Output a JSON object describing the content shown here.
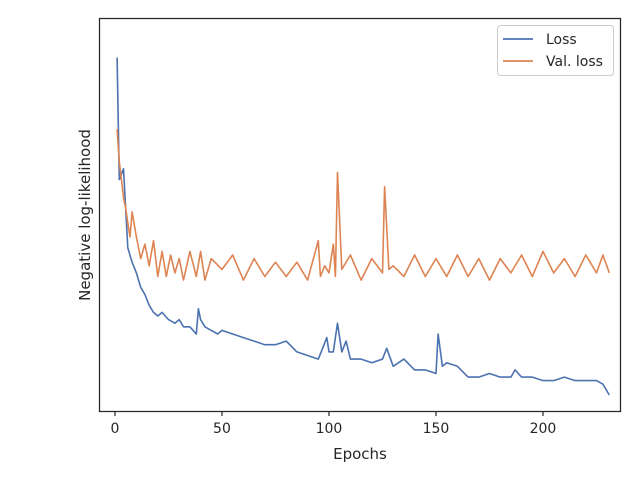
{
  "chart_data": {
    "type": "line",
    "xlabel": "Epochs",
    "ylabel": "Negative log-likelihood",
    "xlim": [
      -7,
      236
    ],
    "ylim": [
      0,
      1
    ],
    "x_ticks": [
      0,
      50,
      100,
      150,
      200
    ],
    "y_ticks_shown": false,
    "grid": false,
    "legend_position": "top-right",
    "series": [
      {
        "name": "Loss",
        "color": "#4c72b0",
        "x": [
          1,
          2,
          4,
          6,
          8,
          10,
          12,
          14,
          16,
          18,
          20,
          22,
          25,
          28,
          30,
          32,
          35,
          38,
          39,
          40,
          42,
          45,
          48,
          50,
          55,
          60,
          65,
          70,
          75,
          80,
          85,
          90,
          95,
          97,
          99,
          100,
          102,
          104,
          106,
          108,
          110,
          115,
          120,
          125,
          127,
          130,
          135,
          140,
          145,
          150,
          151,
          153,
          155,
          160,
          165,
          170,
          175,
          180,
          185,
          187,
          190,
          195,
          200,
          205,
          210,
          215,
          220,
          225,
          228,
          231
        ],
        "values": [
          0.94,
          0.6,
          0.63,
          0.41,
          0.37,
          0.34,
          0.3,
          0.28,
          0.25,
          0.23,
          0.22,
          0.23,
          0.21,
          0.2,
          0.21,
          0.19,
          0.19,
          0.17,
          0.24,
          0.21,
          0.19,
          0.18,
          0.17,
          0.18,
          0.17,
          0.16,
          0.15,
          0.14,
          0.14,
          0.15,
          0.12,
          0.11,
          0.1,
          0.13,
          0.16,
          0.12,
          0.12,
          0.2,
          0.12,
          0.15,
          0.1,
          0.1,
          0.09,
          0.1,
          0.13,
          0.08,
          0.1,
          0.07,
          0.07,
          0.06,
          0.17,
          0.08,
          0.09,
          0.08,
          0.05,
          0.05,
          0.06,
          0.05,
          0.05,
          0.07,
          0.05,
          0.05,
          0.04,
          0.04,
          0.05,
          0.04,
          0.04,
          0.04,
          0.03,
          0.0
        ]
      },
      {
        "name": "Val. loss",
        "color": "#dd8452",
        "x": [
          1,
          2,
          4,
          5,
          6,
          7,
          8,
          10,
          12,
          14,
          16,
          18,
          20,
          22,
          24,
          26,
          28,
          30,
          32,
          35,
          38,
          40,
          42,
          45,
          50,
          55,
          60,
          65,
          70,
          75,
          80,
          85,
          90,
          95,
          96,
          98,
          100,
          102,
          103,
          104,
          106,
          110,
          115,
          120,
          125,
          126,
          128,
          130,
          135,
          140,
          145,
          150,
          155,
          160,
          165,
          170,
          175,
          180,
          185,
          190,
          195,
          200,
          205,
          210,
          215,
          220,
          225,
          228,
          231
        ],
        "values": [
          0.74,
          0.65,
          0.55,
          0.52,
          0.48,
          0.44,
          0.51,
          0.44,
          0.38,
          0.42,
          0.36,
          0.43,
          0.33,
          0.4,
          0.33,
          0.39,
          0.34,
          0.38,
          0.32,
          0.4,
          0.33,
          0.4,
          0.32,
          0.38,
          0.35,
          0.39,
          0.32,
          0.38,
          0.33,
          0.37,
          0.33,
          0.37,
          0.32,
          0.43,
          0.33,
          0.36,
          0.34,
          0.42,
          0.33,
          0.62,
          0.35,
          0.39,
          0.32,
          0.38,
          0.34,
          0.58,
          0.35,
          0.36,
          0.33,
          0.39,
          0.33,
          0.38,
          0.33,
          0.39,
          0.33,
          0.38,
          0.32,
          0.38,
          0.34,
          0.39,
          0.33,
          0.4,
          0.34,
          0.38,
          0.33,
          0.39,
          0.34,
          0.39,
          0.34
        ]
      }
    ]
  }
}
